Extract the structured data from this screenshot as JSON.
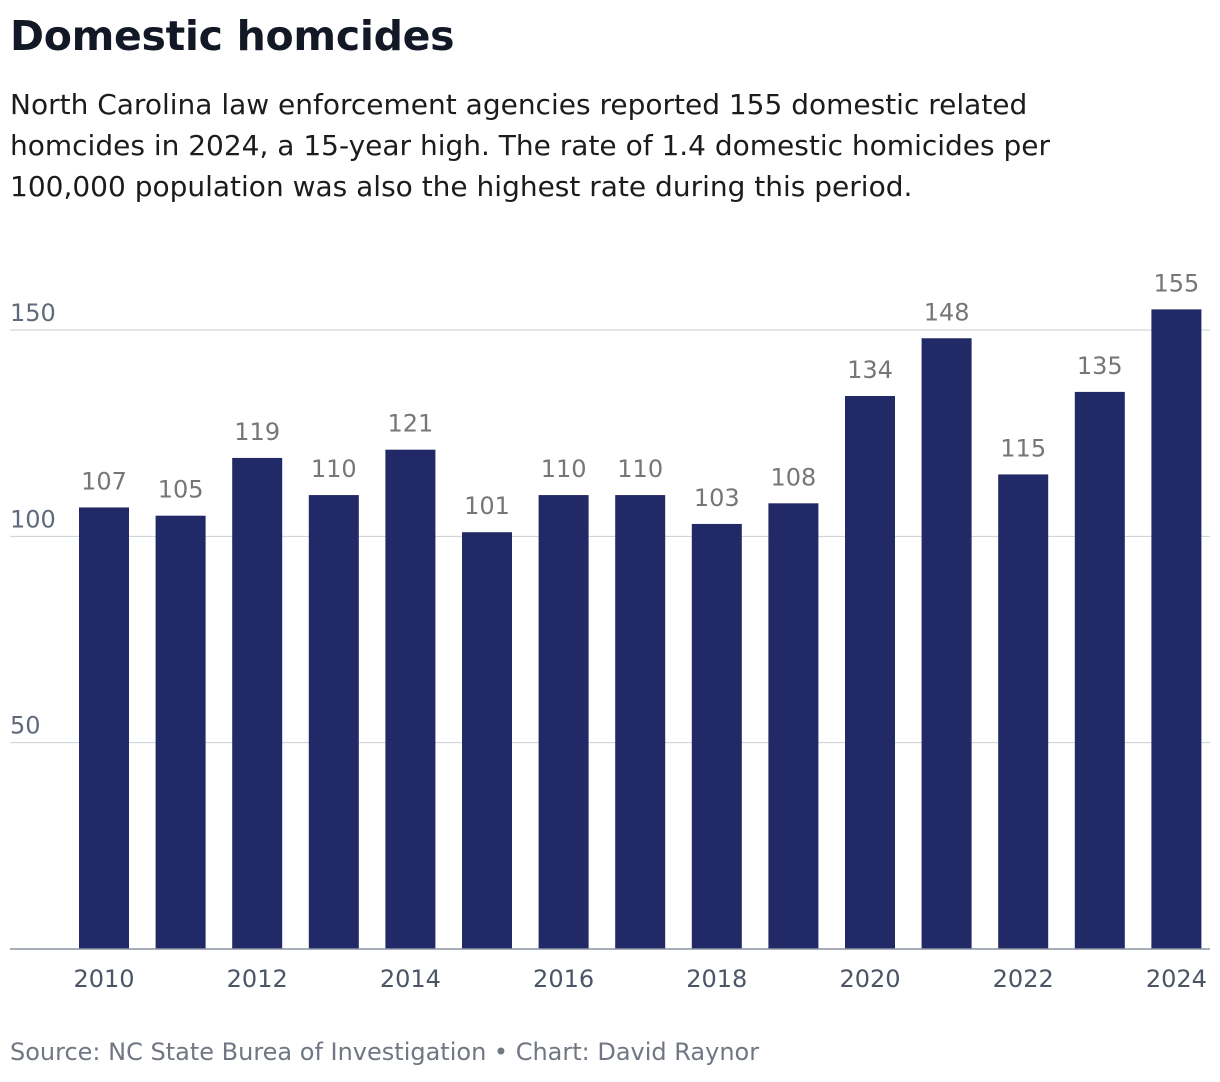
{
  "header": {
    "title": "Domestic homcides",
    "subtitle": "North Carolina law enforcement agencies reported 155 domestic related homcides in 2024, a 15-year high. The rate of 1.4 domestic homicides per 100,000 population was also the highest rate during this period."
  },
  "footer": {
    "source": "Source: NC State Burea of Investigation • Chart: David Raynor"
  },
  "colors": {
    "bar": "#212966",
    "grid": "#c9ced6",
    "axis": "#8a93a2"
  },
  "chart_data": {
    "type": "bar",
    "title": "Domestic homcides",
    "xlabel": "",
    "ylabel": "",
    "ylim": [
      0,
      155
    ],
    "grid": true,
    "yticks": [
      50,
      100,
      150
    ],
    "xtick_labels": [
      "2010",
      "2012",
      "2014",
      "2016",
      "2018",
      "2020",
      "2022",
      "2024"
    ],
    "categories": [
      "2010",
      "2011",
      "2012",
      "2013",
      "2014",
      "2015",
      "2016",
      "2017",
      "2018",
      "2019",
      "2020",
      "2021",
      "2022",
      "2023",
      "2024"
    ],
    "values": [
      107,
      105,
      119,
      110,
      121,
      101,
      110,
      110,
      103,
      108,
      134,
      148,
      115,
      135,
      155
    ]
  }
}
